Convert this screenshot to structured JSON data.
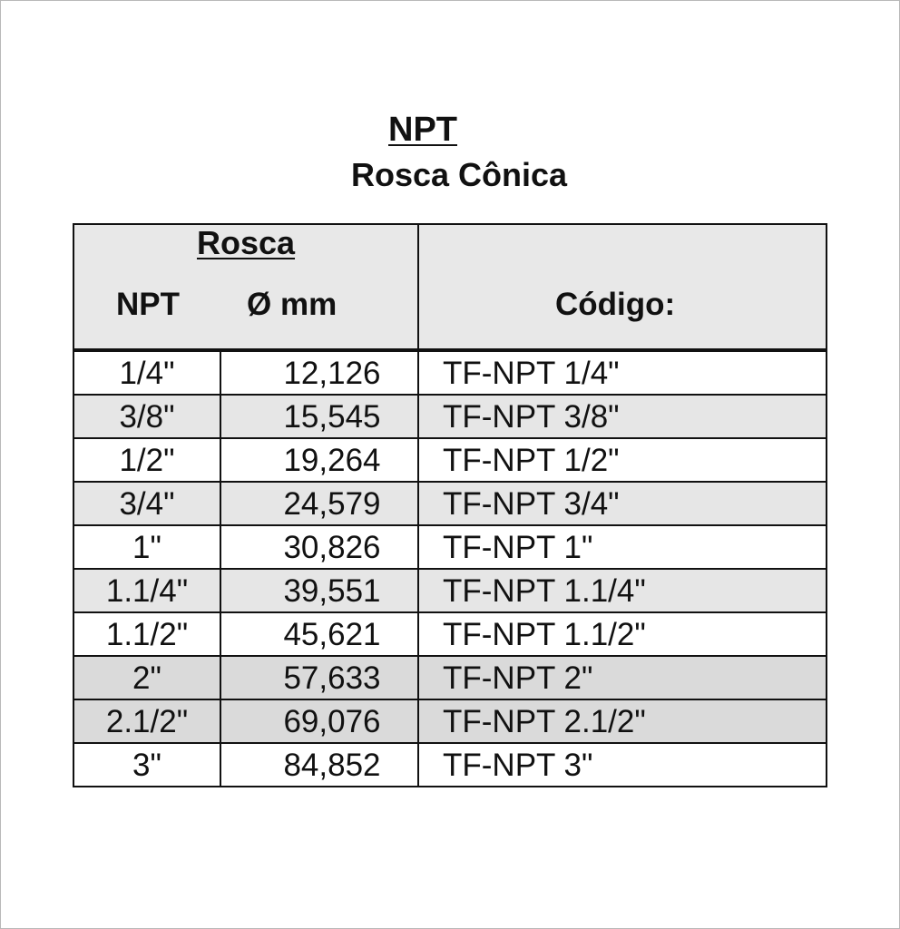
{
  "title": "NPT",
  "subtitle": "Rosca Cônica",
  "table": {
    "group_header": "Rosca",
    "headers": {
      "npt": "NPT",
      "diameter": "Ø mm",
      "code": "Código:"
    },
    "rows": [
      {
        "npt": "1/4\"",
        "mm": "12,126",
        "code": "TF-NPT 1/4\""
      },
      {
        "npt": "3/8\"",
        "mm": "15,545",
        "code": "TF-NPT 3/8\""
      },
      {
        "npt": "1/2\"",
        "mm": "19,264",
        "code": "TF-NPT 1/2\""
      },
      {
        "npt": "3/4\"",
        "mm": "24,579",
        "code": "TF-NPT 3/4\""
      },
      {
        "npt": "1\"",
        "mm": "30,826",
        "code": "TF-NPT 1\""
      },
      {
        "npt": "1.1/4\"",
        "mm": "39,551",
        "code": "TF-NPT 1.1/4\""
      },
      {
        "npt": "1.1/2\"",
        "mm": "45,621",
        "code": "TF-NPT 1.1/2\""
      },
      {
        "npt": "2\"",
        "mm": "57,633",
        "code": "TF-NPT 2\""
      },
      {
        "npt": "2.1/2\"",
        "mm": "69,076",
        "code": "TF-NPT 2.1/2\""
      },
      {
        "npt": "3\"",
        "mm": "84,852",
        "code": "TF-NPT 3\""
      }
    ]
  }
}
